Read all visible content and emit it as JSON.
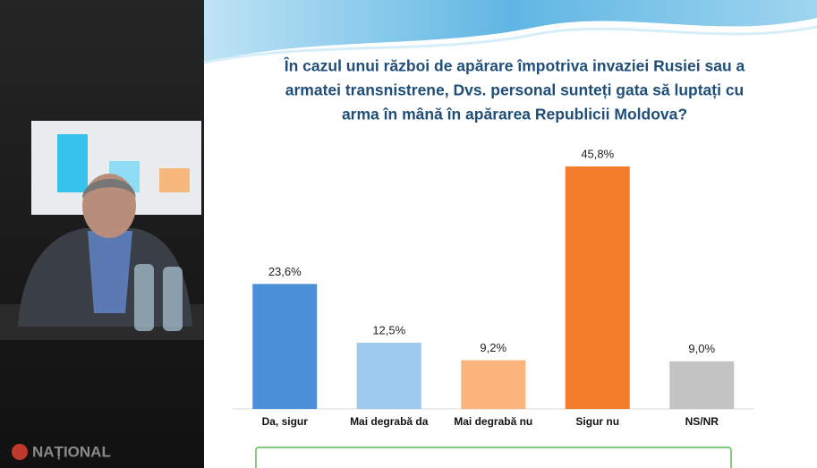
{
  "chart_data": {
    "type": "bar",
    "title": [
      "În cazul unui război de apărare împotriva invaziei Rusiei sau a",
      "armatei transnistrene, Dvs. personal sunteți gata să luptați cu",
      "arma în mână în apărarea Republicii Moldova?"
    ],
    "categories": [
      "Da, sigur",
      "Mai degrabă da",
      "Mai degrabă nu",
      "Sigur nu",
      "NS/NR"
    ],
    "values": [
      23.6,
      12.5,
      9.2,
      45.8,
      9.0
    ],
    "value_labels": [
      "23,6%",
      "12,5%",
      "9,2%",
      "45,8%",
      "9,0%"
    ],
    "colors": [
      "#4a90d9",
      "#9dc9ef",
      "#fbb57c",
      "#f47d2c",
      "#c3c3c3"
    ]
  },
  "logo": "NAȚIONAL"
}
